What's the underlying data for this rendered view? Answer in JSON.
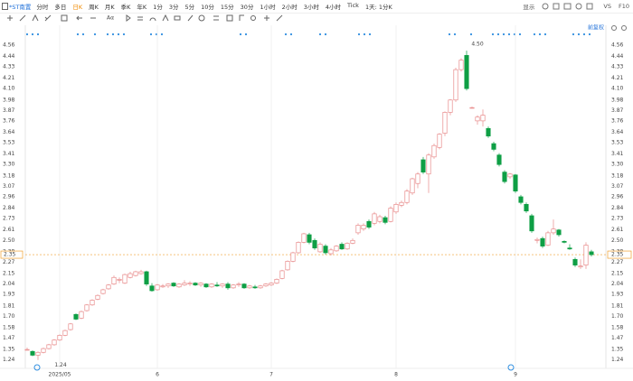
{
  "toolbar": {
    "tab": "*ST南置",
    "periods": [
      "分时",
      "多日",
      "日K",
      "周K",
      "月K",
      "季K",
      "年K",
      "1分",
      "3分",
      "5分",
      "10分",
      "15分",
      "30分",
      "1小时",
      "2小时",
      "3小时",
      "4小时",
      "Tick",
      "1天: 1分K"
    ],
    "display": "显示",
    "vs": "VS",
    "f10": "F10",
    "font_tool": "Aα"
  },
  "chart_data": {
    "type": "candlestick",
    "adjust_label": "前复权",
    "categories": [
      null,
      null,
      null,
      null,
      null,
      null,
      "2025/05",
      null,
      null,
      null,
      null,
      null,
      null,
      null,
      null,
      null,
      null,
      null,
      null,
      null,
      null,
      null,
      null,
      null,
      "6",
      null,
      null,
      null,
      null,
      null,
      null,
      null,
      null,
      null,
      null,
      null,
      null,
      null,
      null,
      null,
      null,
      null,
      null,
      null,
      null,
      "7",
      null,
      null,
      null,
      null,
      null,
      null,
      null,
      null,
      null,
      null,
      null,
      null,
      null,
      null,
      null,
      null,
      null,
      null,
      null,
      null,
      null,
      null,
      "8",
      null,
      null,
      null,
      null,
      null,
      null,
      null,
      null,
      null,
      null,
      null,
      null,
      null,
      null,
      null,
      null,
      null,
      null,
      null,
      null,
      null,
      "9",
      null,
      null,
      null,
      null,
      null,
      null,
      null,
      null,
      null,
      null,
      null,
      null,
      null,
      null
    ],
    "ohlc": [
      [
        1.35,
        1.37,
        1.34,
        1.35
      ],
      [
        1.33,
        1.34,
        1.28,
        1.29
      ],
      [
        1.29,
        1.33,
        1.24,
        1.32
      ],
      [
        1.32,
        1.37,
        1.31,
        1.36
      ],
      [
        1.36,
        1.41,
        1.35,
        1.4
      ],
      [
        1.4,
        1.46,
        1.39,
        1.45
      ],
      [
        1.45,
        1.51,
        1.44,
        1.5
      ],
      [
        1.5,
        1.56,
        1.49,
        1.55
      ],
      [
        1.56,
        1.63,
        1.55,
        1.62
      ],
      [
        1.72,
        1.73,
        1.66,
        1.67
      ],
      [
        1.68,
        1.76,
        1.67,
        1.75
      ],
      [
        1.76,
        1.83,
        1.75,
        1.82
      ],
      [
        1.82,
        1.88,
        1.81,
        1.87
      ],
      [
        1.88,
        1.93,
        1.87,
        1.92
      ],
      [
        1.94,
        1.99,
        1.93,
        1.98
      ],
      [
        1.99,
        2.04,
        1.98,
        2.03
      ],
      [
        2.04,
        2.13,
        2.03,
        2.11
      ],
      [
        2.08,
        2.11,
        2.05,
        2.09
      ],
      [
        2.05,
        2.15,
        2.04,
        2.14
      ],
      [
        2.11,
        2.17,
        2.1,
        2.15
      ],
      [
        2.13,
        2.18,
        2.12,
        2.17
      ],
      [
        2.15,
        2.19,
        2.14,
        2.17
      ],
      [
        2.17,
        2.18,
        2.02,
        2.04
      ],
      [
        2.02,
        2.05,
        1.96,
        1.97
      ],
      [
        1.98,
        2.04,
        1.97,
        2.03
      ],
      [
        2.01,
        2.04,
        2,
        2.02
      ],
      [
        2.02,
        2.05,
        2,
        2.04
      ],
      [
        2.05,
        2.06,
        2.01,
        2.02
      ],
      [
        2.01,
        2.05,
        2,
        2.04
      ],
      [
        2.03,
        2.08,
        2.02,
        2.05
      ],
      [
        2.04,
        2.07,
        2.02,
        2.05
      ],
      [
        2.05,
        2.06,
        2.02,
        2.03
      ],
      [
        2.03,
        2.06,
        2.01,
        2.05
      ],
      [
        2.04,
        2.05,
        2,
        2.01
      ],
      [
        2.01,
        2.05,
        2,
        2.04
      ],
      [
        2.03,
        2.06,
        2.01,
        2.02
      ],
      [
        2.02,
        2.05,
        2,
        2.04
      ],
      [
        2.04,
        2.06,
        1.98,
        2
      ],
      [
        2,
        2.04,
        1.99,
        2.03
      ],
      [
        2.03,
        2.06,
        2.01,
        2.04
      ],
      [
        2.04,
        2.05,
        1.99,
        2
      ],
      [
        2,
        2.03,
        1.99,
        2.02
      ],
      [
        2.01,
        2.03,
        1.99,
        2
      ],
      [
        2,
        2.03,
        1.99,
        2.02
      ],
      [
        2.02,
        2.05,
        2.01,
        2.04
      ],
      [
        2.03,
        2.06,
        2.02,
        2.05
      ],
      [
        2.05,
        2.1,
        2.04,
        2.09
      ],
      [
        2.1,
        2.19,
        2.09,
        2.18
      ],
      [
        2.19,
        2.29,
        2.18,
        2.28
      ],
      [
        2.28,
        2.38,
        2.27,
        2.37
      ],
      [
        2.37,
        2.49,
        2.36,
        2.48
      ],
      [
        2.48,
        2.58,
        2.47,
        2.57
      ],
      [
        2.56,
        2.58,
        2.46,
        2.48
      ],
      [
        2.5,
        2.52,
        2.4,
        2.42
      ],
      [
        2.38,
        2.48,
        2.37,
        2.46
      ],
      [
        2.44,
        2.46,
        2.35,
        2.37
      ],
      [
        2.36,
        2.42,
        2.34,
        2.4
      ],
      [
        2.39,
        2.45,
        2.38,
        2.44
      ],
      [
        2.46,
        2.48,
        2.4,
        2.41
      ],
      [
        2.41,
        2.48,
        2.4,
        2.47
      ],
      [
        2.47,
        2.52,
        2.46,
        2.5
      ],
      [
        2.58,
        2.68,
        2.56,
        2.66
      ],
      [
        2.62,
        2.68,
        2.6,
        2.66
      ],
      [
        2.7,
        2.72,
        2.62,
        2.64
      ],
      [
        2.68,
        2.8,
        2.66,
        2.78
      ],
      [
        2.7,
        2.77,
        2.68,
        2.75
      ],
      [
        2.74,
        2.76,
        2.67,
        2.69
      ],
      [
        2.7,
        2.86,
        2.69,
        2.84
      ],
      [
        2.8,
        2.9,
        2.78,
        2.88
      ],
      [
        2.87,
        2.92,
        2.85,
        2.9
      ],
      [
        2.9,
        3.04,
        2.88,
        3.02
      ],
      [
        3,
        3.16,
        2.98,
        3.15
      ],
      [
        3.1,
        3.22,
        3.05,
        3.2
      ],
      [
        3.35,
        3.38,
        3.2,
        3.22
      ],
      [
        3.2,
        3.42,
        3,
        3.4
      ],
      [
        3.38,
        3.52,
        3.36,
        3.5
      ],
      [
        3.48,
        3.63,
        3.46,
        3.62
      ],
      [
        3.63,
        3.86,
        3.6,
        3.85
      ],
      [
        3.85,
        3.99,
        3.82,
        3.98
      ],
      [
        3.98,
        4.32,
        3.96,
        4.3
      ],
      [
        4.3,
        4.42,
        4.28,
        4.4
      ],
      [
        4.45,
        4.5,
        4.08,
        4.1
      ],
      [
        3.9,
        3.91,
        3.89,
        3.9
      ],
      [
        3.76,
        3.82,
        3.72,
        3.8
      ],
      [
        3.76,
        3.88,
        3.7,
        3.82
      ],
      [
        3.68,
        3.7,
        3.58,
        3.6
      ],
      [
        3.52,
        3.54,
        3.44,
        3.46
      ],
      [
        3.4,
        3.42,
        3.28,
        3.3
      ],
      [
        3.22,
        3.24,
        3.1,
        3.12
      ],
      [
        3.17,
        3.21,
        3.15,
        3.2
      ],
      [
        3.19,
        3.2,
        3,
        3.02
      ],
      [
        2.96,
        2.98,
        2.88,
        2.9
      ],
      [
        2.88,
        2.9,
        2.79,
        2.81
      ],
      [
        2.76,
        2.78,
        2.58,
        2.6
      ],
      [
        2.5,
        2.53,
        2.47,
        2.51
      ],
      [
        2.52,
        2.54,
        2.42,
        2.44
      ],
      [
        2.45,
        2.6,
        2.44,
        2.58
      ],
      [
        2.58,
        2.72,
        2.56,
        2.62
      ],
      [
        2.61,
        2.62,
        2.54,
        2.56
      ],
      [
        2.49,
        2.5,
        2.47,
        2.48
      ],
      [
        2.42,
        2.46,
        2.4,
        2.41
      ],
      [
        2.3,
        2.32,
        2.22,
        2.24
      ],
      [
        2.22,
        2.3,
        2.2,
        2.23
      ],
      [
        2.24,
        2.48,
        2.2,
        2.45
      ],
      [
        2.38,
        2.4,
        2.33,
        2.35
      ]
    ],
    "up_color": "#e88a8a",
    "down_color": "#0e9f45",
    "ylim": [
      1.18,
      4.72
    ],
    "yticks": [
      4.56,
      4.44,
      4.33,
      4.21,
      {
        "value": 4.1,
        "label": "4.10"
      },
      3.98,
      3.87,
      3.76,
      3.64,
      3.53,
      3.41,
      {
        "value": 3.3,
        "label": "3.30"
      },
      3.18,
      3.07,
      2.96,
      2.84,
      2.73,
      2.61,
      {
        "value": 2.5,
        "label": "2.50"
      },
      2.38,
      2.27,
      2.15,
      2.04,
      1.93,
      1.81,
      {
        "value": 1.7,
        "label": "1.70"
      },
      1.58,
      1.47,
      1.35,
      1.24
    ],
    "grid": false,
    "last_price": 2.35,
    "last_color": "#f0a030",
    "max_label": "4.50",
    "min_label": "1.24"
  }
}
